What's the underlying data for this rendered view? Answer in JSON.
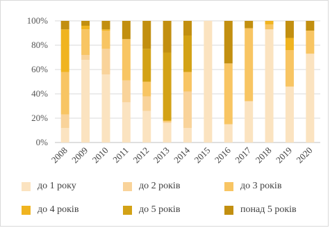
{
  "chart_data": {
    "type": "bar",
    "stacked": true,
    "categories": [
      "2008",
      "2009",
      "2010",
      "2011",
      "2012",
      "2013",
      "2014",
      "2015",
      "2016",
      "2017",
      "2018",
      "2019",
      "2020"
    ],
    "yticks": [
      "0%",
      "20%",
      "40%",
      "60%",
      "80%",
      "100%"
    ],
    "ylim": [
      0,
      100
    ],
    "grid": true,
    "legend_position": "bottom",
    "series": [
      {
        "name": "до 1 року",
        "color": "#fbe3c0",
        "values": [
          12,
          68,
          56,
          33,
          26,
          16,
          12,
          100,
          15,
          34,
          93,
          46,
          73
        ]
      },
      {
        "name": "до 2 років",
        "color": "#f9d39a",
        "values": [
          11,
          4,
          21,
          18,
          12,
          1,
          30,
          0,
          0,
          0,
          0,
          0,
          0
        ]
      },
      {
        "name": "до 3 років",
        "color": "#f8c563",
        "values": [
          35,
          21,
          15,
          34,
          12,
          1,
          16,
          0,
          50,
          60,
          4,
          30,
          19
        ]
      },
      {
        "name": "до 4 років",
        "color": "#f0b420",
        "values": [
          35,
          3,
          1,
          0,
          0,
          0,
          0,
          0,
          0,
          0,
          3,
          10,
          0
        ]
      },
      {
        "name": "до 5 років",
        "color": "#d3a216",
        "values": [
          0,
          0,
          0,
          0,
          27,
          56,
          30,
          0,
          0,
          0,
          0,
          0,
          0
        ]
      },
      {
        "name": "понад 5 років",
        "color": "#c28f10",
        "values": [
          7,
          4,
          7,
          15,
          23,
          26,
          12,
          0,
          35,
          6,
          0,
          14,
          8
        ]
      }
    ]
  }
}
